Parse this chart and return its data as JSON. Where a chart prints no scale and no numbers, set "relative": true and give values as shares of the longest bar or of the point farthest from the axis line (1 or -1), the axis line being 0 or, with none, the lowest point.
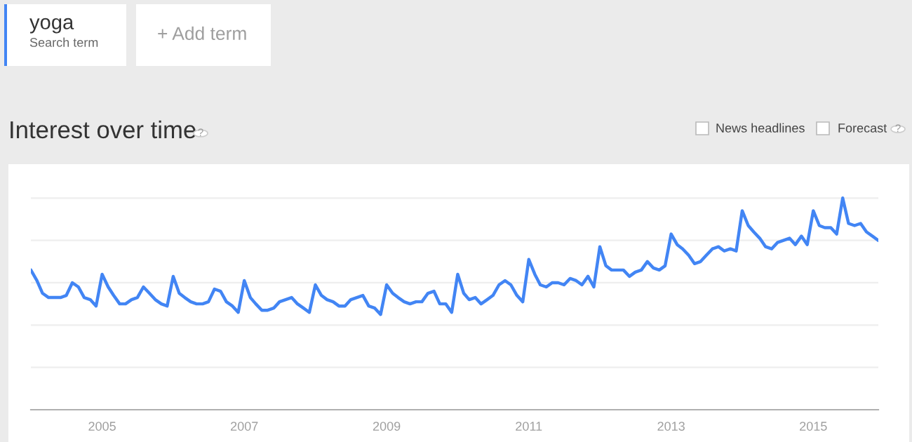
{
  "chart_data": {
    "type": "line",
    "title": "Interest over time",
    "relative": true,
    "annotations": [
      "yoga",
      "Search term",
      "+ Add term",
      "News headlines",
      "Forecast",
      "?",
      "?"
    ],
    "x": [
      "2004-01",
      "2004-02",
      "2004-03",
      "2004-04",
      "2004-05",
      "2004-06",
      "2004-07",
      "2004-08",
      "2004-09",
      "2004-10",
      "2004-11",
      "2004-12",
      "2005-01",
      "2005-02",
      "2005-03",
      "2005-04",
      "2005-05",
      "2005-06",
      "2005-07",
      "2005-08",
      "2005-09",
      "2005-10",
      "2005-11",
      "2005-12",
      "2006-01",
      "2006-02",
      "2006-03",
      "2006-04",
      "2006-05",
      "2006-06",
      "2006-07",
      "2006-08",
      "2006-09",
      "2006-10",
      "2006-11",
      "2006-12",
      "2007-01",
      "2007-02",
      "2007-03",
      "2007-04",
      "2007-05",
      "2007-06",
      "2007-07",
      "2007-08",
      "2007-09",
      "2007-10",
      "2007-11",
      "2007-12",
      "2008-01",
      "2008-02",
      "2008-03",
      "2008-04",
      "2008-05",
      "2008-06",
      "2008-07",
      "2008-08",
      "2008-09",
      "2008-10",
      "2008-11",
      "2008-12",
      "2009-01",
      "2009-02",
      "2009-03",
      "2009-04",
      "2009-05",
      "2009-06",
      "2009-07",
      "2009-08",
      "2009-09",
      "2009-10",
      "2009-11",
      "2009-12",
      "2010-01",
      "2010-02",
      "2010-03",
      "2010-04",
      "2010-05",
      "2010-06",
      "2010-07",
      "2010-08",
      "2010-09",
      "2010-10",
      "2010-11",
      "2010-12",
      "2011-01",
      "2011-02",
      "2011-03",
      "2011-04",
      "2011-05",
      "2011-06",
      "2011-07",
      "2011-08",
      "2011-09",
      "2011-10",
      "2011-11",
      "2011-12",
      "2012-01",
      "2012-02",
      "2012-03",
      "2012-04",
      "2012-05",
      "2012-06",
      "2012-07",
      "2012-08",
      "2012-09",
      "2012-10",
      "2012-11",
      "2012-12",
      "2013-01",
      "2013-02",
      "2013-03",
      "2013-04",
      "2013-05",
      "2013-06",
      "2013-07",
      "2013-08",
      "2013-09",
      "2013-10",
      "2013-11",
      "2013-12",
      "2014-01",
      "2014-02",
      "2014-03",
      "2014-04",
      "2014-05",
      "2014-06",
      "2014-07",
      "2014-08",
      "2014-09",
      "2014-10",
      "2014-11",
      "2014-12",
      "2015-01",
      "2015-02",
      "2015-03",
      "2015-04",
      "2015-05",
      "2015-06",
      "2015-07",
      "2015-08",
      "2015-09",
      "2015-10",
      "2015-11",
      "2015-12"
    ],
    "series": [
      {
        "color": "#4285f4",
        "values": [
          0.66,
          0.61,
          0.55,
          0.53,
          0.53,
          0.53,
          0.54,
          0.6,
          0.58,
          0.53,
          0.52,
          0.49,
          0.64,
          0.58,
          0.54,
          0.5,
          0.5,
          0.52,
          0.53,
          0.58,
          0.55,
          0.52,
          0.5,
          0.49,
          0.63,
          0.55,
          0.53,
          0.51,
          0.5,
          0.5,
          0.51,
          0.57,
          0.56,
          0.51,
          0.49,
          0.46,
          0.61,
          0.53,
          0.5,
          0.47,
          0.47,
          0.48,
          0.51,
          0.52,
          0.53,
          0.5,
          0.48,
          0.46,
          0.59,
          0.54,
          0.52,
          0.51,
          0.49,
          0.49,
          0.52,
          0.53,
          0.54,
          0.49,
          0.48,
          0.45,
          0.59,
          0.55,
          0.53,
          0.51,
          0.5,
          0.51,
          0.51,
          0.55,
          0.56,
          0.5,
          0.5,
          0.46,
          0.64,
          0.55,
          0.52,
          0.53,
          0.5,
          0.52,
          0.54,
          0.59,
          0.61,
          0.59,
          0.54,
          0.51,
          0.71,
          0.64,
          0.59,
          0.58,
          0.6,
          0.6,
          0.59,
          0.62,
          0.61,
          0.59,
          0.63,
          0.58,
          0.77,
          0.68,
          0.66,
          0.66,
          0.66,
          0.63,
          0.65,
          0.66,
          0.7,
          0.67,
          0.66,
          0.68,
          0.83,
          0.78,
          0.76,
          0.73,
          0.69,
          0.7,
          0.73,
          0.76,
          0.77,
          0.75,
          0.76,
          0.75,
          0.94,
          0.87,
          0.84,
          0.81,
          0.77,
          0.76,
          0.79,
          0.8,
          0.81,
          0.78,
          0.82,
          0.78,
          0.94,
          0.87,
          0.86,
          0.86,
          0.83,
          1.0,
          0.88,
          0.87,
          0.88,
          0.84,
          0.82,
          0.8
        ]
      }
    ],
    "xlim": [
      "2004-01",
      "2015-12"
    ],
    "xticks": [
      "2005",
      "2007",
      "2009",
      "2011",
      "2013",
      "2015"
    ],
    "grid": "y",
    "legend": false,
    "marker": "none",
    "line_style": "solid"
  }
}
